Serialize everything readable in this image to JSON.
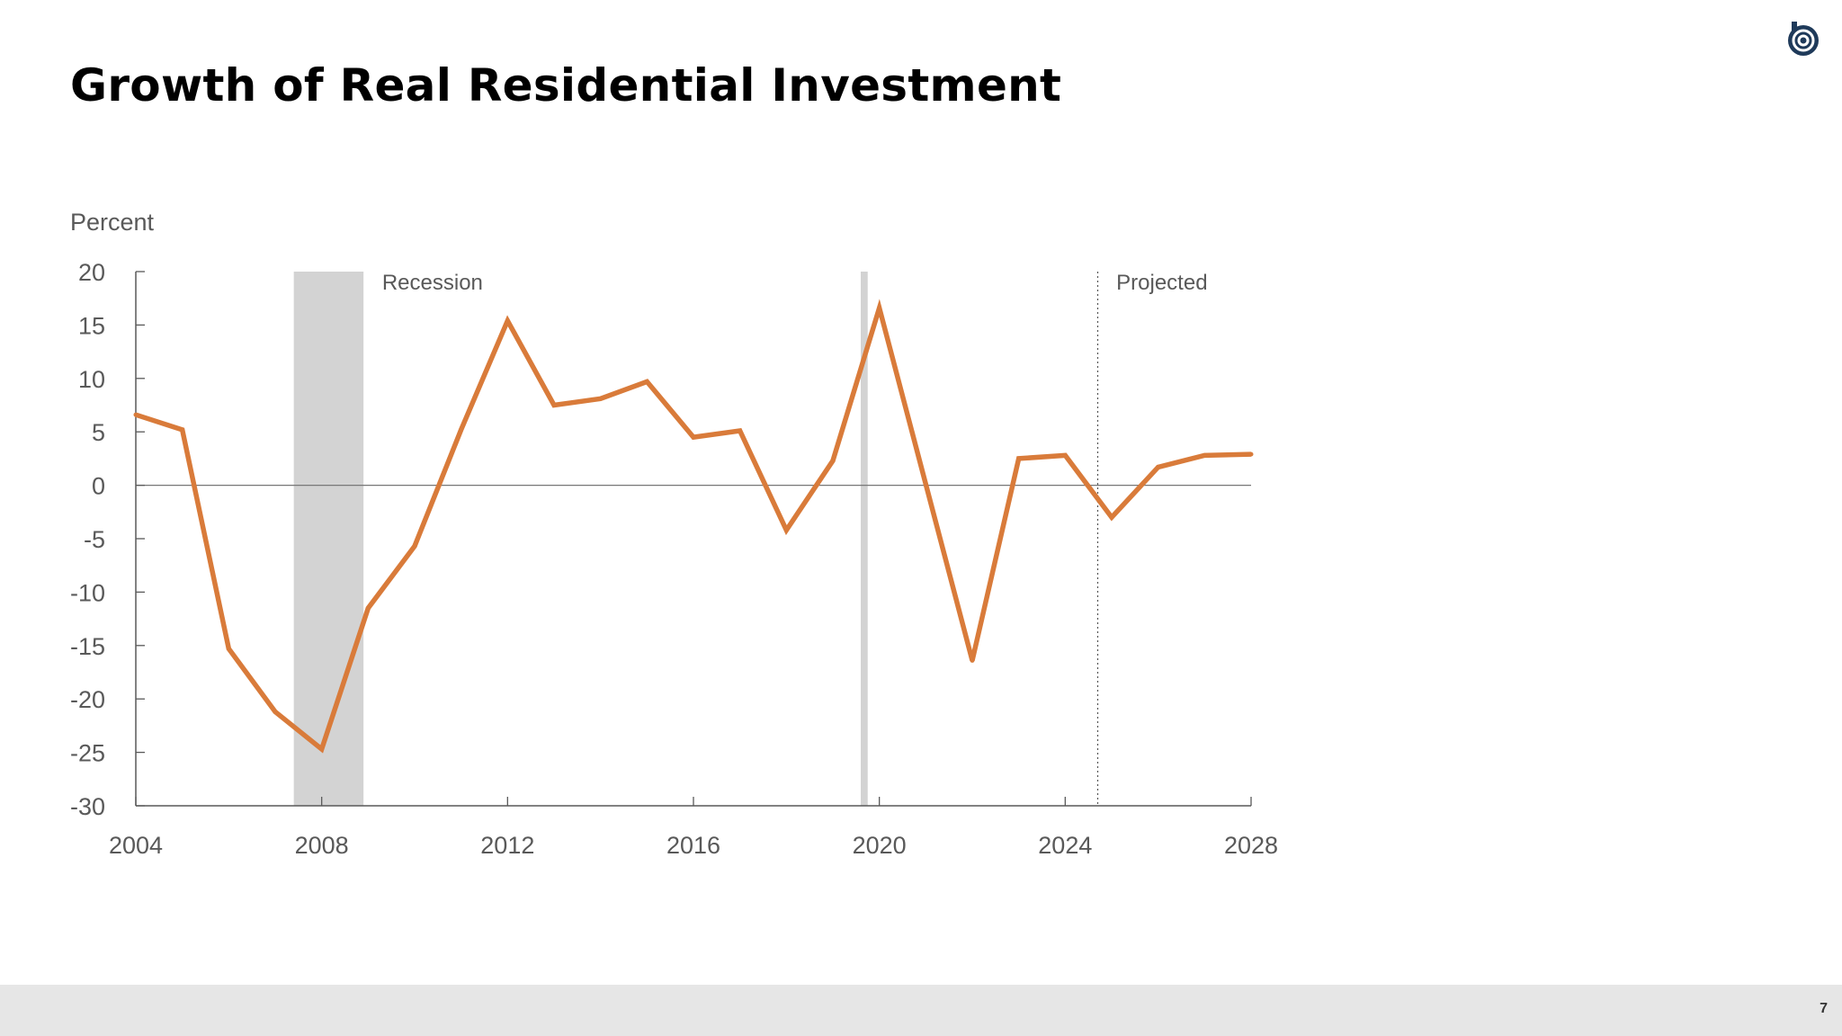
{
  "slide": {
    "title": "Growth of Real Residential Investment",
    "page_number": "7",
    "footer_color": "#e6e6e6",
    "logo_icon": "circular-b-logo-icon",
    "logo_color": "#1f3a5a"
  },
  "chart_data": {
    "type": "line",
    "title": "",
    "xlabel": "",
    "ylabel": "Percent",
    "xlim": [
      2004,
      2028
    ],
    "ylim": [
      -30,
      20
    ],
    "x_ticks": [
      2004,
      2008,
      2012,
      2016,
      2020,
      2024,
      2028
    ],
    "y_ticks": [
      20,
      15,
      10,
      5,
      0,
      -5,
      -10,
      -15,
      -20,
      -25,
      -30
    ],
    "grid": false,
    "series": [
      {
        "color": "#d97b3a",
        "x": [
          2004,
          2005,
          2006,
          2007,
          2008,
          2009,
          2010,
          2011,
          2012,
          2013,
          2014,
          2015,
          2016,
          2017,
          2018,
          2019,
          2020,
          2021,
          2022,
          2023,
          2024,
          2025,
          2026,
          2027,
          2028
        ],
        "y": [
          6.6,
          5.2,
          -15.3,
          -21.2,
          -24.7,
          -11.5,
          -5.7,
          5.2,
          15.4,
          7.5,
          8.1,
          9.7,
          4.5,
          5.1,
          -4.2,
          2.3,
          16.6,
          0.1,
          -16.4,
          2.5,
          2.8,
          -3.0,
          1.7,
          2.8,
          2.9
        ]
      }
    ],
    "shaded_regions": [
      {
        "start": 2007.4,
        "end": 2008.9,
        "color": "#d3d3d3"
      },
      {
        "start": 2019.6,
        "end": 2019.75,
        "color": "#d3d3d3"
      }
    ],
    "annotations": [
      {
        "text": "Recession",
        "x": 2009.3,
        "y": 19
      },
      {
        "text": "Projected",
        "x": 2025.1,
        "y": 19
      }
    ],
    "projection_start": 2024.7,
    "zero_line": true
  }
}
